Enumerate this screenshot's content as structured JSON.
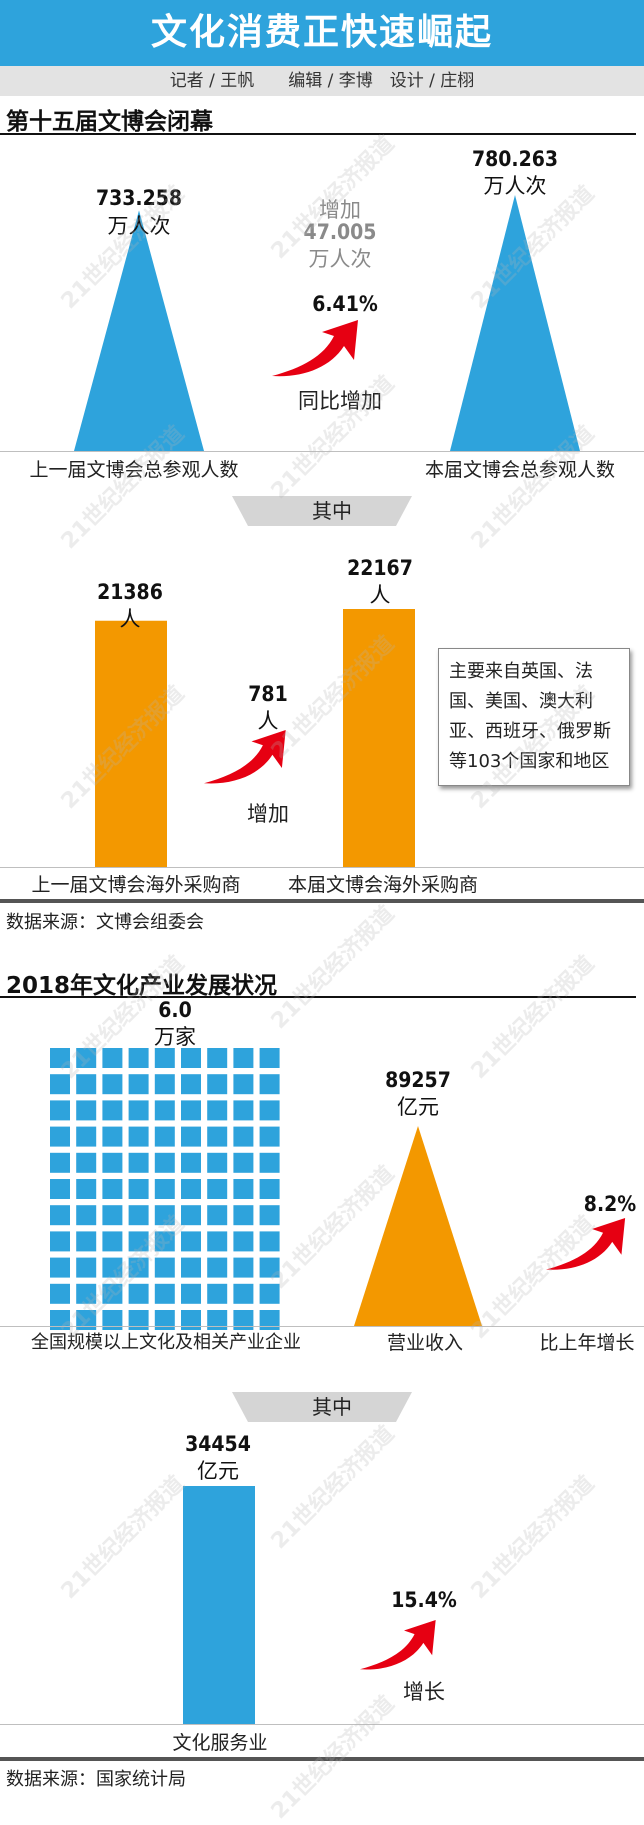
{
  "title": "文化消费正快速崛起",
  "credits": "记者 / 王帆　　编辑 / 李博　设计 / 庄栩",
  "watermark": "21世纪经济报道",
  "colors": {
    "blue": "#2ea3dc",
    "orange": "#f39800",
    "red": "#e60012"
  },
  "section1": {
    "title": "第十五届文博会闭幕",
    "increase_label": "增加",
    "increase_value": "47.005",
    "increase_unit": "万人次",
    "growth_pct": "6.41%",
    "growth_label": "同比增加",
    "qizhong": "其中",
    "foreign_increase_value": "781",
    "foreign_increase_unit": "人",
    "foreign_increase_label": "增加",
    "note": "主要来自英国、法国、美国、澳大利亚、西班牙、俄罗斯等103个国家和地区",
    "source": "数据来源：文博会组委会"
  },
  "section2": {
    "title": "2018年文化产业发展状况",
    "growth_pct": "8.2%",
    "growth_label": "比上年增长",
    "qizhong": "其中",
    "service_growth_pct": "15.4%",
    "service_growth_label": "增长",
    "source": "数据来源：国家统计局"
  },
  "chart_data": [
    {
      "type": "bar",
      "categories": [
        "上一届文博会总参观人数",
        "本届文博会总参观人数"
      ],
      "values": [
        733.258,
        780.263
      ],
      "value_labels": [
        "733.258",
        "780.263"
      ],
      "unit": "万人次",
      "color": "#2ea3dc"
    },
    {
      "type": "bar",
      "categories": [
        "上一届文博会海外采购商",
        "本届文博会海外采购商"
      ],
      "values": [
        21386,
        22167
      ],
      "value_labels": [
        "21386",
        "22167"
      ],
      "unit": "人",
      "color": "#f39800"
    },
    {
      "type": "bar",
      "categories": [
        "全国规模以上文化及相关产业企业",
        "营业收入"
      ],
      "values": [
        6.0,
        89257
      ],
      "value_labels": [
        "6.0",
        "89257"
      ],
      "units": [
        "万家",
        "亿元"
      ],
      "colors": [
        "#2ea3dc",
        "#f39800"
      ]
    },
    {
      "type": "bar",
      "categories": [
        "文化服务业"
      ],
      "values": [
        34454
      ],
      "value_labels": [
        "34454"
      ],
      "unit": "亿元",
      "color": "#2ea3dc"
    }
  ]
}
